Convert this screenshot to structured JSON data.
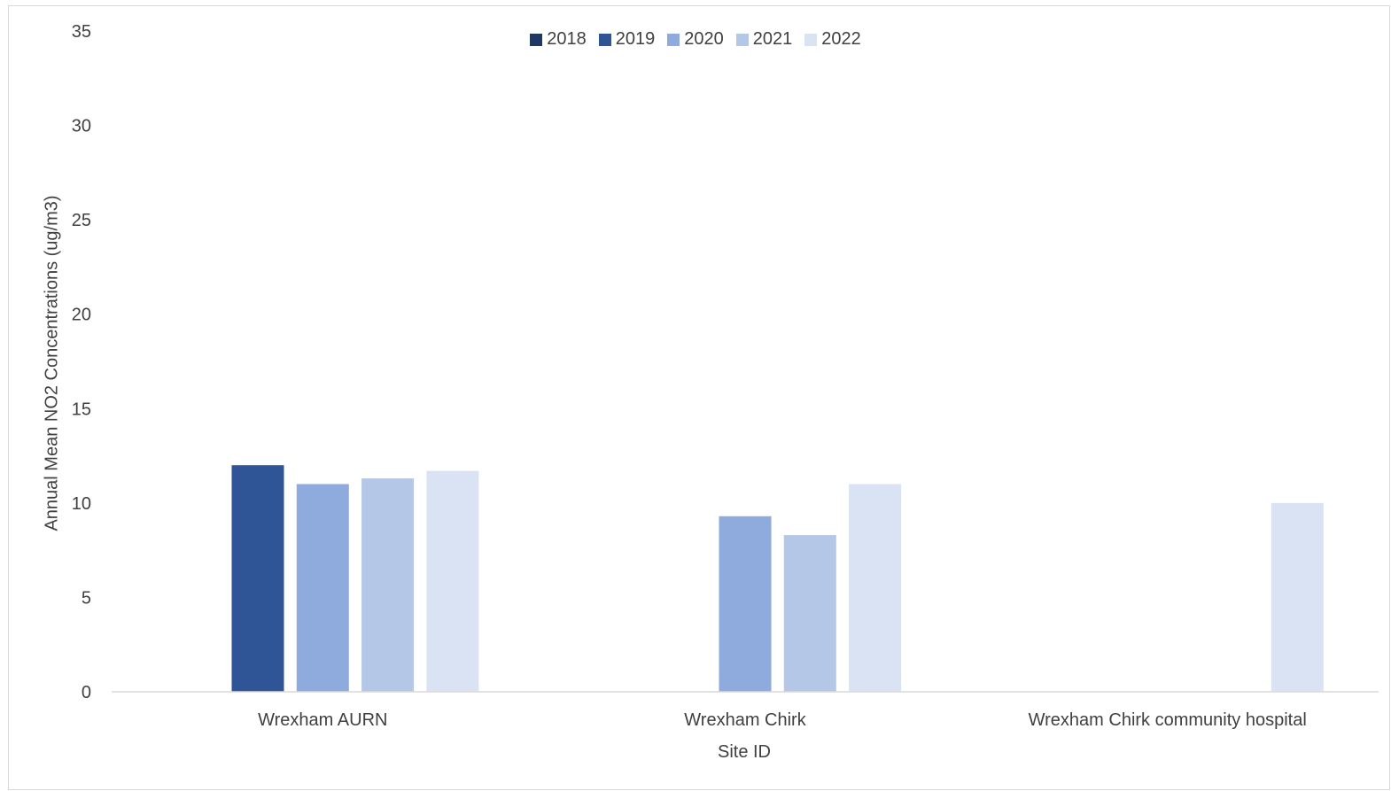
{
  "chart_data": {
    "type": "bar",
    "title": "",
    "xlabel": "Site ID",
    "ylabel": "Annual Mean NO2 Concentrations (ug/m3)",
    "ylim": [
      0,
      35
    ],
    "yticks": [
      0,
      5,
      10,
      15,
      20,
      25,
      30,
      35
    ],
    "grid": false,
    "legend_position": "top",
    "categories": [
      "Wrexham AURN",
      "Wrexham Chirk",
      "Wrexham Chirk community hospital"
    ],
    "series": [
      {
        "name": "2018",
        "color": "#203864",
        "values": [
          null,
          null,
          null
        ]
      },
      {
        "name": "2019",
        "color": "#2f5597",
        "values": [
          12.0,
          null,
          null
        ]
      },
      {
        "name": "2020",
        "color": "#8faadc",
        "values": [
          11.0,
          9.3,
          null
        ]
      },
      {
        "name": "2021",
        "color": "#b4c7e7",
        "values": [
          11.3,
          8.3,
          null
        ]
      },
      {
        "name": "2022",
        "color": "#dae3f3",
        "values": [
          11.7,
          11.0,
          10.0
        ]
      }
    ]
  }
}
